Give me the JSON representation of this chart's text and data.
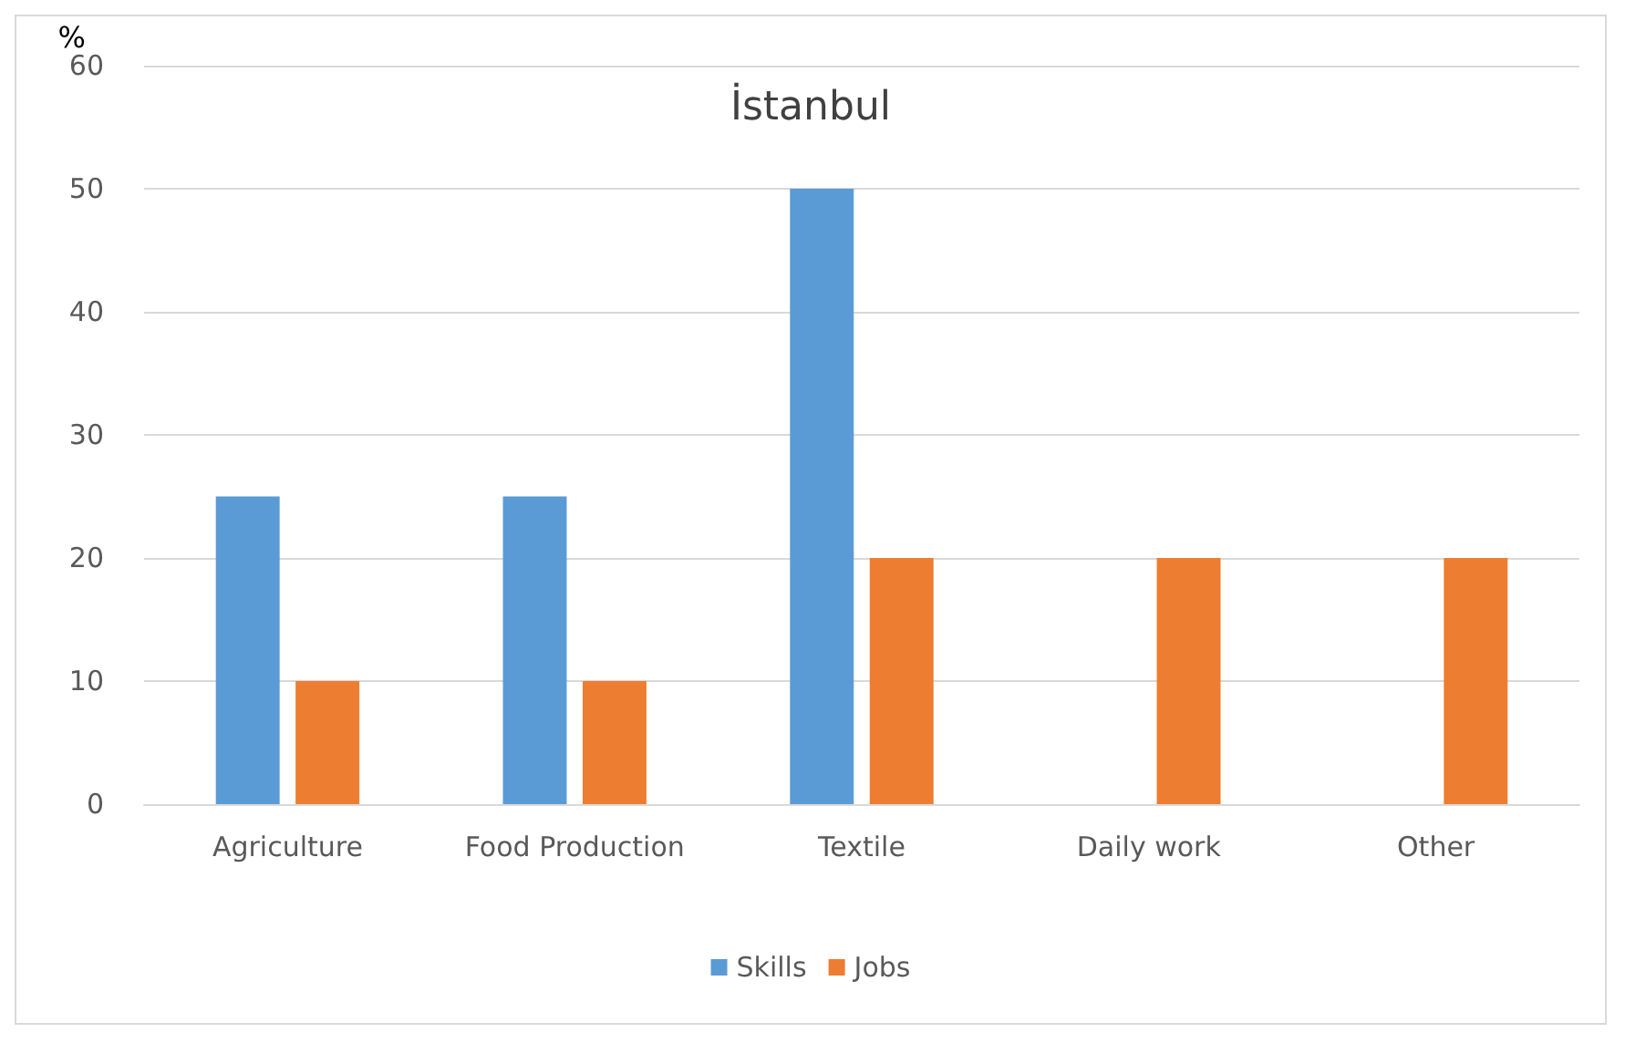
{
  "chart_data": {
    "type": "bar",
    "title": "İstanbul",
    "ylabel": "%",
    "categories": [
      "Agriculture",
      "Food Production",
      "Textile",
      "Daily work",
      "Other"
    ],
    "series": [
      {
        "name": "Skills",
        "color": "#5b9bd5",
        "values": [
          25,
          25,
          50,
          0,
          0
        ]
      },
      {
        "name": "Jobs",
        "color": "#ed7d31",
        "values": [
          10,
          10,
          20,
          20,
          20
        ]
      }
    ],
    "ylim": [
      0,
      60
    ],
    "yticks": [
      0,
      10,
      20,
      30,
      40,
      50,
      60
    ],
    "grid": "y",
    "legend": "bottom"
  }
}
